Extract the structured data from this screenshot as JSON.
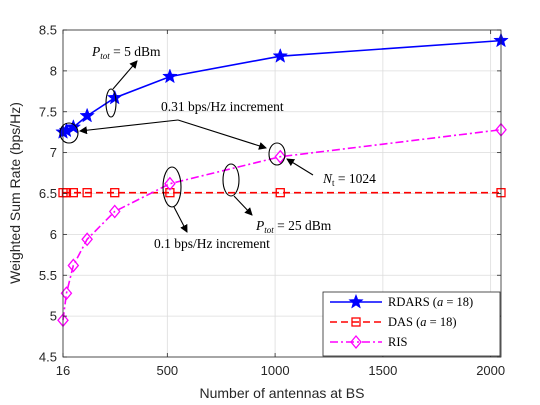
{
  "chart_data": {
    "type": "line",
    "xlabel": "Number of antennas at BS",
    "ylabel": "Weighted Sum Rate (bps/Hz)",
    "xlim": [
      16,
      2048
    ],
    "ylim": [
      4.5,
      8.5
    ],
    "x_ticks": [
      16,
      500,
      1000,
      1500,
      2000
    ],
    "x_tick_labels": [
      "16",
      "500",
      "1000",
      "1500",
      "2000"
    ],
    "y_ticks": [
      4.5,
      5,
      5.5,
      6,
      6.5,
      7,
      7.5,
      8,
      8.5
    ],
    "y_tick_labels": [
      "4.5",
      "5",
      "5.5",
      "6",
      "6.5",
      "7",
      "7.5",
      "8",
      "8.5"
    ],
    "grid": true,
    "legend_position": "bottom-right",
    "series": [
      {
        "name": "RDARS (a = 18)",
        "color": "#0000ff",
        "marker": "star",
        "line_style": "solid",
        "x": [
          16,
          32,
          64,
          128,
          256,
          512,
          1024,
          2048
        ],
        "values": [
          7.25,
          7.27,
          7.31,
          7.45,
          7.67,
          7.93,
          8.18,
          8.37
        ]
      },
      {
        "name": "DAS (a = 18)",
        "color": "#ff0000",
        "marker": "square",
        "line_style": "dashed",
        "x": [
          16,
          32,
          64,
          128,
          256,
          512,
          1024,
          2048
        ],
        "values": [
          6.51,
          6.51,
          6.51,
          6.51,
          6.51,
          6.51,
          6.51,
          6.51
        ]
      },
      {
        "name": "RIS",
        "color": "#ff00ff",
        "marker": "diamond",
        "line_style": "dashdot",
        "x": [
          16,
          32,
          64,
          128,
          256,
          512,
          1024,
          2048
        ],
        "values": [
          4.95,
          5.28,
          5.62,
          5.94,
          6.28,
          6.62,
          6.95,
          7.28
        ]
      }
    ],
    "annotations": {
      "ptot5": {
        "prefix": "P",
        "sub": "tot",
        "suffix": " = 5 dBm"
      },
      "increment031": "0.31 bps/Hz increment",
      "nt": {
        "prefix": "N",
        "sub": "t",
        "suffix": " = 1024"
      },
      "ptot25": {
        "prefix": "P",
        "sub": "tot",
        "suffix": " = 25 dBm"
      },
      "increment01": "0.1 bps/Hz increment"
    },
    "legend": [
      {
        "label": "RDARS (",
        "italic": "a",
        "label_end": " = 18)"
      },
      {
        "label": "DAS (",
        "italic": "a",
        "label_end": " = 18)"
      },
      {
        "label": "RIS",
        "italic": "",
        "label_end": ""
      }
    ]
  }
}
